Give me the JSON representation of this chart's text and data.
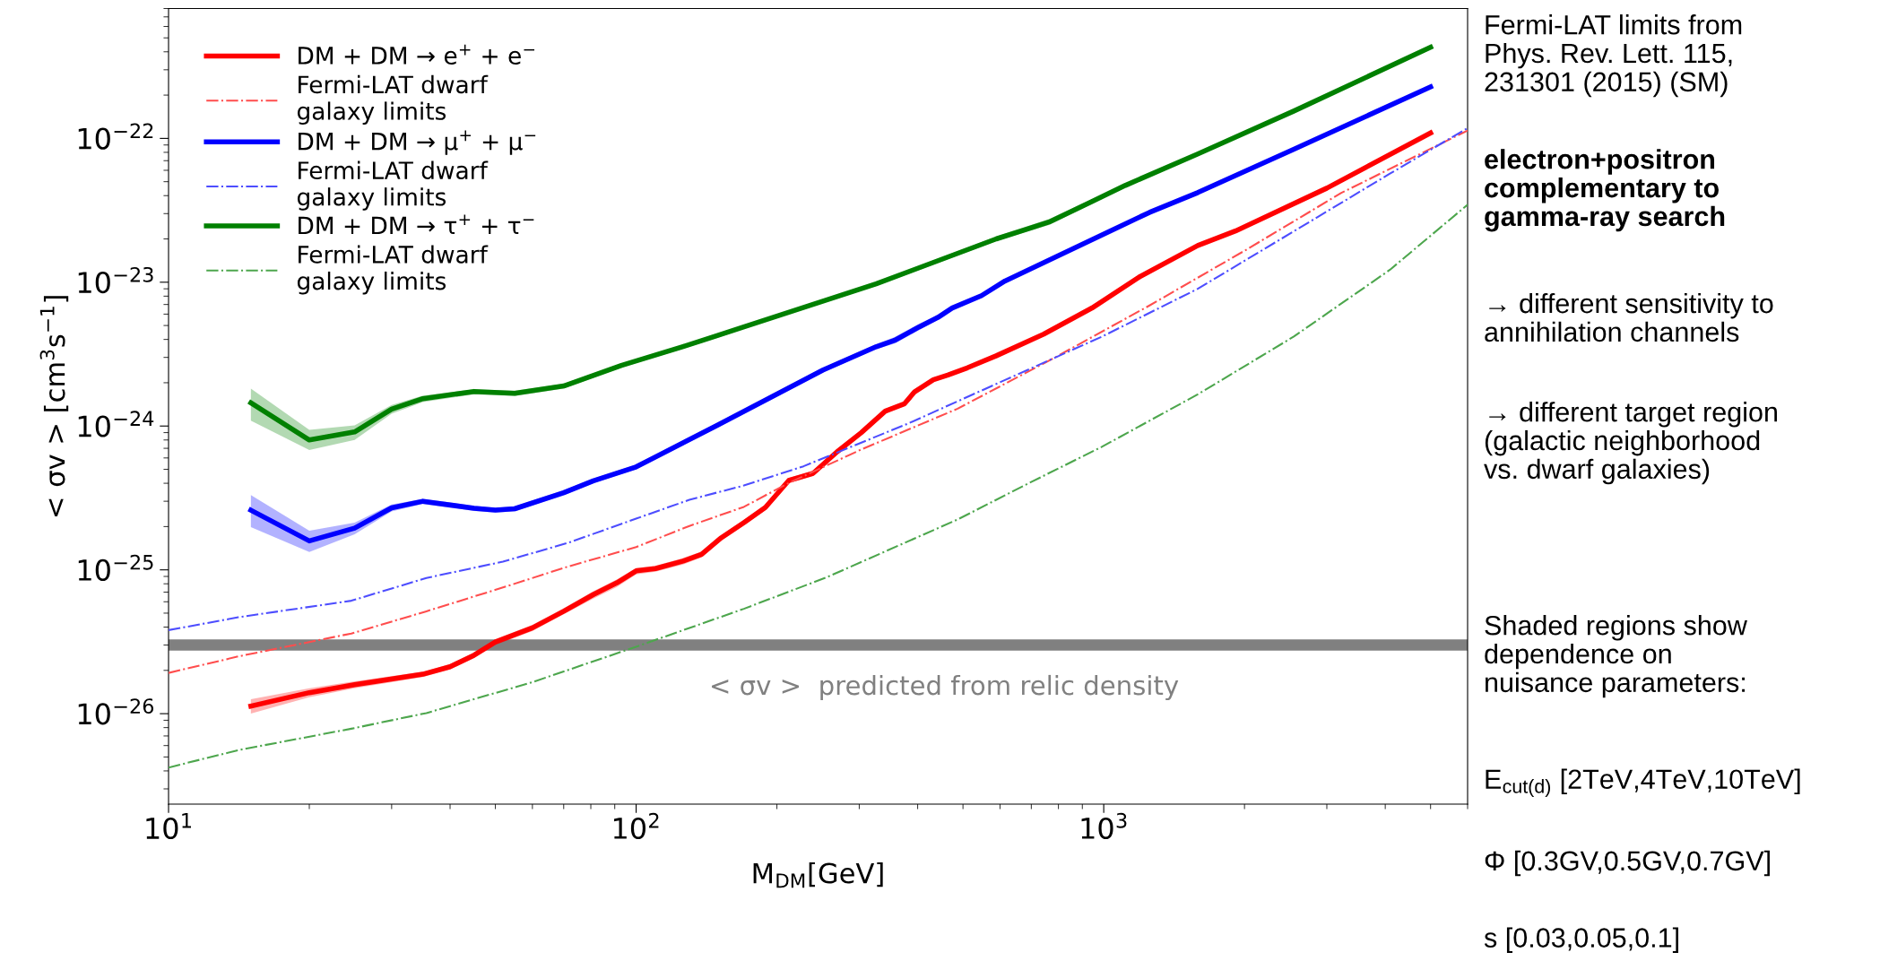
{
  "chart_data": {
    "type": "line",
    "log": "xy",
    "xlabel": "M$_{DM}$[GeV]",
    "ylabel": "< σv > [cm$^{3}$s$^{−1}$]",
    "xlim": [
      10,
      6000
    ],
    "ylim": [
      2.35e-27,
      8e-22
    ],
    "xticks": [
      {
        "value": 10,
        "label": "10$^{1}$"
      },
      {
        "value": 100,
        "label": "10$^{2}$"
      },
      {
        "value": 1000,
        "label": "10$^{3}$"
      }
    ],
    "yticks": [
      {
        "value": 1e-26,
        "label": "10$^{−26}$"
      },
      {
        "value": 1e-25,
        "label": "10$^{−25}$"
      },
      {
        "value": 1e-24,
        "label": "10$^{−24}$"
      },
      {
        "value": 1e-23,
        "label": "10$^{−23}$"
      },
      {
        "value": 1e-22,
        "label": "10$^{−22}$"
      }
    ],
    "grid": false,
    "legend": "top left",
    "series": [
      {
        "name": "DM + DM → e$^{+}$ + e$^{−}$",
        "color": "#ff0000",
        "line_style": "solid",
        "x": [
          15,
          20,
          25,
          35,
          40,
          45,
          50,
          60,
          70,
          81,
          91,
          100,
          110,
          126,
          138,
          152,
          170,
          189,
          212,
          239,
          269,
          303,
          341,
          375,
          394,
          432,
          464,
          511,
          589,
          744,
          944,
          1193,
          1589,
          1913,
          3000,
          5000
        ],
        "values": [
          1.13e-26,
          1.4e-26,
          1.59e-26,
          1.88e-26,
          2.12e-26,
          2.55e-26,
          3.15e-26,
          3.95e-26,
          5.15e-26,
          6.73e-26,
          8.13e-26,
          9.83e-26,
          1.02e-25,
          1.15e-25,
          1.28e-25,
          1.67e-25,
          2.13e-25,
          2.72e-25,
          4.18e-25,
          4.69e-25,
          6.62e-25,
          9e-25,
          1.27e-24,
          1.43e-24,
          1.73e-24,
          2.1e-24,
          2.26e-24,
          2.54e-24,
          3.08e-24,
          4.35e-24,
          6.62e-24,
          1.09e-23,
          1.8e-23,
          2.27e-23,
          4.51e-23,
          1.09e-22
        ],
        "lower": [
          1e-26,
          1.3e-26,
          1.5e-26,
          1.8e-26,
          2.03e-26,
          2.43e-26,
          3e-26,
          3.75e-26,
          4.9e-26,
          6.3e-26,
          7.6e-26,
          9.3e-26,
          9.7e-26,
          1.09e-25,
          1.22e-25,
          1.59e-25,
          2.03e-25,
          2.6e-25,
          4e-25,
          4.5e-25,
          6.35e-25,
          8.65e-25,
          1.22e-24,
          1.38e-24,
          1.67e-24,
          2.03e-24,
          2.19e-24,
          2.46e-24,
          2.99e-24,
          4.23e-24,
          6.45e-24,
          1.06e-23,
          1.76e-23,
          2.22e-23,
          4.42e-23,
          1.07e-22
        ],
        "upper": [
          1.26e-26,
          1.5e-26,
          1.68e-26,
          1.96e-26,
          2.21e-26,
          2.67e-26,
          3.3e-26,
          4.15e-26,
          5.4e-26,
          7.1e-26,
          8.6e-26,
          1.03e-25,
          1.07e-25,
          1.21e-25,
          1.34e-25,
          1.75e-25,
          2.23e-25,
          2.84e-25,
          4.36e-25,
          4.88e-25,
          6.9e-25,
          9.35e-25,
          1.32e-24,
          1.48e-24,
          1.79e-24,
          2.17e-24,
          2.33e-24,
          2.62e-24,
          3.17e-24,
          4.47e-24,
          6.79e-24,
          1.12e-23,
          1.84e-23,
          2.32e-23,
          4.6e-23,
          1.11e-22
        ]
      },
      {
        "name": "Fermi-LAT dwarf\ngalaxy limits",
        "color": "#ff4d4d",
        "line_style": "dashdot",
        "x": [
          10,
          14.1,
          24.6,
          35.6,
          51.9,
          71.9,
          100,
          130,
          170,
          212,
          303,
          487,
          781,
          1253,
          2010,
          3222,
          6000
        ],
        "values": [
          1.92e-26,
          2.5e-26,
          3.61e-26,
          5.15e-26,
          7.54e-26,
          1.06e-25,
          1.44e-25,
          2.02e-25,
          2.74e-25,
          4.02e-25,
          6.87e-25,
          1.32e-24,
          2.96e-24,
          6.89e-24,
          1.67e-23,
          4.18e-23,
          1.135e-22
        ]
      },
      {
        "name": "DM + DM → μ$^{+}$ + μ$^{−}$",
        "color": "#0000ff",
        "line_style": "solid",
        "x": [
          15,
          20,
          25,
          30,
          35,
          45,
          50,
          55,
          70,
          81,
          100,
          149,
          251,
          326,
          357,
          403,
          442,
          474,
          548,
          615,
          1253,
          1589,
          2550,
          5000
        ],
        "values": [
          2.6e-25,
          1.59e-25,
          1.95e-25,
          2.7e-25,
          3e-25,
          2.68e-25,
          2.6e-25,
          2.66e-25,
          3.44e-25,
          4.16e-25,
          5.2e-25,
          1.01e-24,
          2.45e-24,
          3.56e-24,
          3.94e-24,
          4.89e-24,
          5.69e-24,
          6.61e-24,
          8.07e-24,
          1.02e-23,
          3.06e-23,
          4.2e-23,
          8.4e-23,
          2.28e-22
        ],
        "lower": [
          1.98e-25,
          1.33e-25,
          1.77e-25,
          2.55e-25,
          2.87e-25,
          2.57e-25,
          2.5e-25,
          2.55e-25,
          3.3e-25,
          4e-25,
          5e-25,
          9.7e-25,
          2.36e-24,
          3.42e-24,
          3.75e-24,
          4.65e-24,
          5.5e-24,
          6.4e-24,
          7.85e-24,
          9.9e-24,
          2.98e-23,
          4.1e-23,
          8.2e-23,
          2.24e-22
        ],
        "upper": [
          3.31e-25,
          1.87e-25,
          2.13e-25,
          2.85e-25,
          3.12e-25,
          2.8e-25,
          2.7e-25,
          2.77e-25,
          3.58e-25,
          4.32e-25,
          5.4e-25,
          1.05e-24,
          2.54e-24,
          3.7e-24,
          4.15e-24,
          5.15e-24,
          5.9e-24,
          6.8e-24,
          8.3e-24,
          1.05e-23,
          3.14e-23,
          4.3e-23,
          8.6e-23,
          2.32e-22
        ]
      },
      {
        "name": "Fermi-LAT dwarf\ngalaxy limits",
        "color": "#4d4dff",
        "line_style": "dashdot",
        "x": [
          10,
          14.1,
          24.6,
          35.6,
          51.9,
          71.9,
          100,
          130,
          170,
          228,
          384,
          615,
          989,
          1589,
          2550,
          4093,
          6000
        ],
        "values": [
          3.81e-26,
          4.68e-26,
          6.1e-26,
          8.78e-26,
          1.14e-25,
          1.55e-25,
          2.27e-25,
          3.07e-25,
          3.86e-25,
          5.25e-25,
          1.05e-24,
          2.09e-24,
          4.17e-24,
          9e-24,
          2.26e-23,
          5.69e-23,
          1.18e-22
        ]
      },
      {
        "name": "DM + DM → τ$^{+}$ + τ$^{−}$",
        "color": "#008000",
        "line_style": "solid",
        "x": [
          15,
          20,
          25,
          30,
          35,
          45,
          55,
          70,
          93,
          126,
          149,
          170,
          326,
          589,
          764,
          944,
          1112,
          1589,
          2550,
          5000
        ],
        "values": [
          1.45e-24,
          8e-25,
          9.1e-25,
          1.31e-24,
          1.55e-24,
          1.74e-24,
          1.69e-24,
          1.9e-24,
          2.64e-24,
          3.57e-24,
          4.25e-24,
          4.9e-24,
          9.75e-24,
          2e-23,
          2.62e-23,
          3.64e-23,
          4.71e-23,
          7.8e-23,
          1.55e-22,
          4.3e-22
        ],
        "lower": [
          1.09e-24,
          6.8e-25,
          8e-25,
          1.22e-24,
          1.47e-24,
          1.66e-24,
          1.62e-24,
          1.82e-24,
          2.55e-24,
          3.45e-24,
          4.1e-24,
          4.75e-24,
          9.4e-24,
          1.93e-23,
          2.5e-23,
          3.5e-23,
          4.6e-23,
          7.6e-23,
          1.52e-22,
          4.2e-22
        ],
        "upper": [
          1.82e-24,
          9.4e-25,
          1.01e-24,
          1.4e-24,
          1.63e-24,
          1.8e-24,
          1.76e-24,
          1.97e-24,
          2.72e-24,
          3.68e-24,
          4.4e-24,
          5.05e-24,
          1e-23,
          2.08e-23,
          2.75e-23,
          3.78e-23,
          4.82e-23,
          7.95e-23,
          1.58e-22,
          4.4e-22
        ]
      },
      {
        "name": "Fermi-LAT dwarf\ngalaxy limits",
        "color": "#4da64d",
        "line_style": "dashdot",
        "x": [
          10,
          14.1,
          24.6,
          35.6,
          59.8,
          100,
          170,
          256,
          487,
          693,
          989,
          1589,
          2550,
          4093,
          6000
        ],
        "values": [
          4.22e-27,
          5.58e-27,
          7.86e-27,
          1.01e-26,
          1.65e-26,
          2.92e-26,
          5.36e-26,
          8.9e-26,
          2.24e-25,
          4.02e-25,
          7.15e-25,
          1.66e-24,
          4.19e-24,
          1.22e-23,
          3.46e-23
        ]
      }
    ],
    "ref_lines": [
      {
        "axis": "y",
        "value": 3e-26,
        "label": "< σv >  predicted from relic density",
        "color": "#808080"
      }
    ],
    "annotations": [
      "Fermi-LAT limits from\nPhys. Rev. Lett. 115,\n231301 (2015) (SM)",
      "electron+positron\ncomplementary to\ngamma-ray search",
      "→ different sensitivity to\nannihilation channels",
      "→ different target region\n(galactic neighborhood\nvs. dwarf galaxies)",
      "Shaded regions show\ndependence on\nnuisance parameters:",
      "E$_{cut(d)}$ [2TeV,4TeV,10TeV]",
      "Φ [0.3GV,0.5GV,0.7GV]",
      "s [0.03,0.05,0.1]"
    ]
  }
}
